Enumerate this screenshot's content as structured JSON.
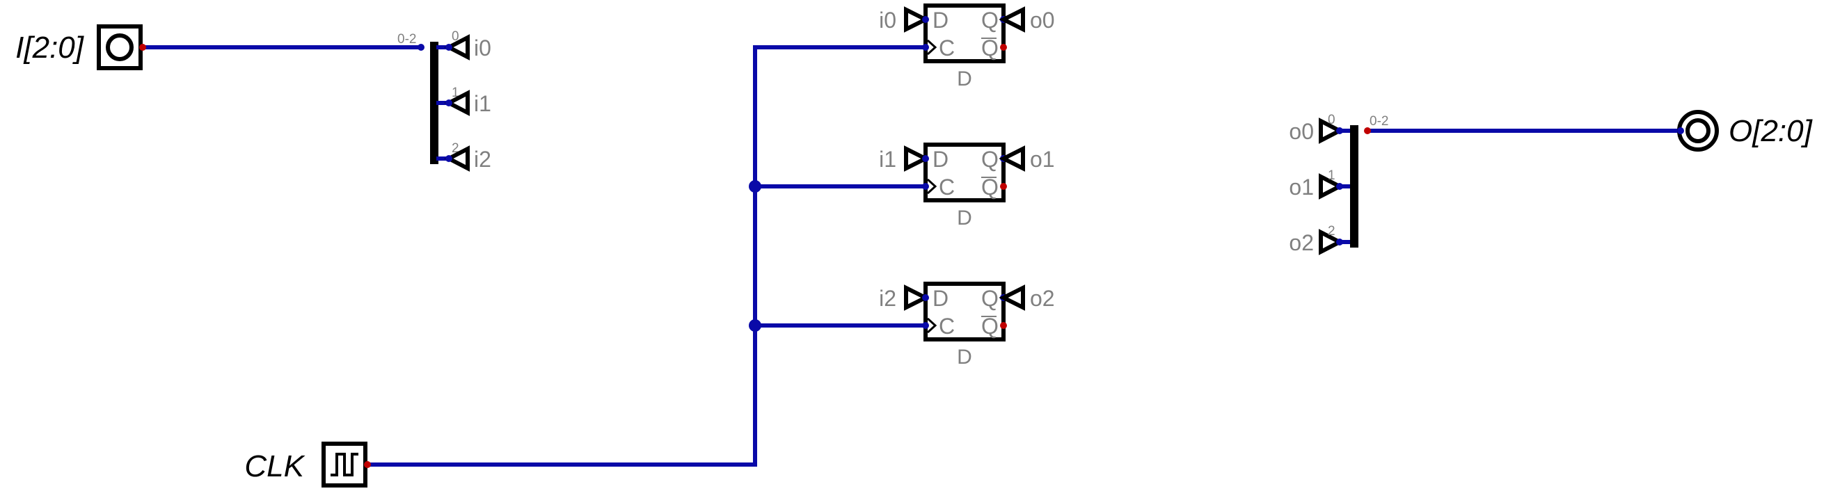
{
  "input_pin": {
    "label": "I[2:0]"
  },
  "output_pin": {
    "label": "O[2:0]"
  },
  "clock": {
    "label": "CLK"
  },
  "input_splitter": {
    "bus_label": "0-2",
    "bits": [
      "0",
      "1",
      "2"
    ],
    "tunnels": [
      "i0",
      "i1",
      "i2"
    ]
  },
  "output_splitter": {
    "bus_label": "0-2",
    "bits": [
      "0",
      "1",
      "2"
    ],
    "tunnels": [
      "o0",
      "o1",
      "o2"
    ]
  },
  "flipflops": [
    {
      "d_tunnel": "i0",
      "q_tunnel": "o0",
      "pin_d": "D",
      "pin_c": "C",
      "pin_q": "Q",
      "pin_qn": "Q",
      "name": "D"
    },
    {
      "d_tunnel": "i1",
      "q_tunnel": "o1",
      "pin_d": "D",
      "pin_c": "C",
      "pin_q": "Q",
      "pin_qn": "Q",
      "name": "D"
    },
    {
      "d_tunnel": "i2",
      "q_tunnel": "o2",
      "pin_d": "D",
      "pin_c": "C",
      "pin_q": "Q",
      "pin_qn": "Q",
      "name": "D"
    }
  ],
  "colors": {
    "wire": "#0a0aa8",
    "connected_pin": "#0a0aa8",
    "unconnected_pin": "#c00000",
    "component": "#000000",
    "label": "#808080"
  }
}
